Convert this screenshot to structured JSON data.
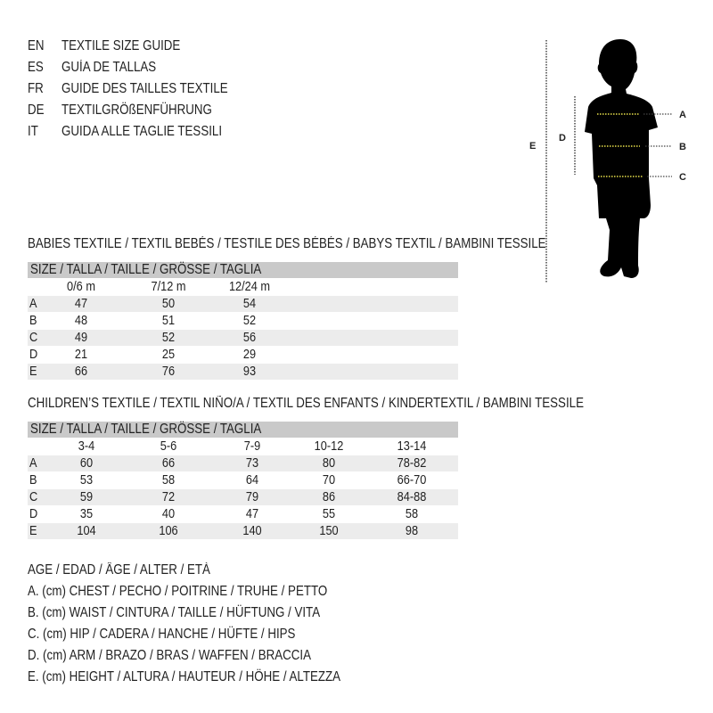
{
  "title_lines": [
    {
      "code": "EN",
      "text": "TEXTILE SIZE GUIDE"
    },
    {
      "code": "ES",
      "text": "GUÍA DE TALLAS"
    },
    {
      "code": "FR",
      "text": "GUIDE DES TAILLES TEXTILE"
    },
    {
      "code": "DE",
      "text": "TEXTILGRÖßENFÜHRUNG"
    },
    {
      "code": "IT",
      "text": "GUIDA ALLE TAGLIE TESSILI"
    }
  ],
  "figure": {
    "labels": {
      "a": "A",
      "b": "B",
      "c": "C",
      "d": "D",
      "e": "E"
    },
    "measure_line_color": "#e8e04a"
  },
  "babies": {
    "title": "BABIES TEXTILE / TEXTIL BEBÉS / TESTILE DES BÉBÉS / BABYS TEXTIL / BAMBINI TESSILE",
    "size_header": "SIZE / TALLA / TAILLE / GRÖSSE / TAGLIA",
    "columns": [
      "0/6 m",
      "7/12 m",
      "12/24 m"
    ],
    "rows": [
      {
        "label": "A",
        "values": [
          "47",
          "50",
          "54"
        ]
      },
      {
        "label": "B",
        "values": [
          "48",
          "51",
          "52"
        ]
      },
      {
        "label": "C",
        "values": [
          "49",
          "52",
          "56"
        ]
      },
      {
        "label": "D",
        "values": [
          "21",
          "25",
          "29"
        ]
      },
      {
        "label": "E",
        "values": [
          "66",
          "76",
          "93"
        ]
      }
    ]
  },
  "children": {
    "title": "CHILDREN’S TEXTILE / TEXTIL NIÑO/A / TEXTIL DES ENFANTS / KINDERTEXTIL / BAMBINI TESSILE",
    "size_header": "SIZE / TALLA / TAILLE / GRÖSSE / TAGLIA",
    "columns": [
      "3-4",
      "5-6",
      "7-9",
      "10-12",
      "13-14"
    ],
    "rows": [
      {
        "label": "A",
        "values": [
          "60",
          "66",
          "73",
          "80",
          "78-82"
        ]
      },
      {
        "label": "B",
        "values": [
          "53",
          "58",
          "64",
          "70",
          "66-70"
        ]
      },
      {
        "label": "C",
        "values": [
          "59",
          "72",
          "79",
          "86",
          "84-88"
        ]
      },
      {
        "label": "D",
        "values": [
          "35",
          "40",
          "47",
          "55",
          "58"
        ]
      },
      {
        "label": "E",
        "values": [
          "104",
          "106",
          "140",
          "150",
          "98"
        ]
      }
    ]
  },
  "legend": [
    "AGE / EDAD / ÂGE / ALTER / ETÀ",
    "A. (cm) CHEST / PECHO / POITRINE / TRUHE / PETTO",
    "B. (cm) WAIST / CINTURA / TAILLE / HÜFTUNG / VITA",
    "C. (cm) HIP / CADERA / HANCHE / HÜFTE / HIPS",
    "D. (cm) ARM / BRAZO / BRAS / WAFFEN / BRACCIA",
    "E. (cm) HEIGHT / ALTURA / HAUTEUR / HÖHE / ALTEZZA"
  ]
}
